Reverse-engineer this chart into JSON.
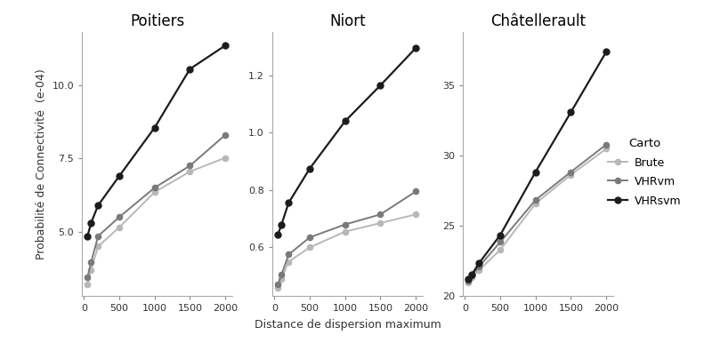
{
  "x": [
    50,
    100,
    200,
    500,
    1000,
    1500,
    2000
  ],
  "panels": [
    {
      "title": "Poitiers",
      "ylabel": "Probabilité de Connectivité  (e-04)",
      "series": {
        "Brute": [
          3.2,
          3.7,
          4.5,
          5.15,
          6.35,
          7.05,
          7.52
        ],
        "VHRvm": [
          3.45,
          3.95,
          4.85,
          5.5,
          6.5,
          7.25,
          8.3
        ],
        "VHRsvm": [
          4.85,
          5.3,
          5.9,
          6.9,
          8.55,
          10.55,
          11.35
        ]
      },
      "ylim": [
        2.8,
        11.8
      ],
      "yticks": [
        5.0,
        7.5,
        10.0
      ],
      "show_ylabel": true
    },
    {
      "title": "Niort",
      "ylabel": "",
      "series": {
        "Brute": [
          0.46,
          0.49,
          0.55,
          0.6,
          0.655,
          0.685,
          0.715
        ],
        "VHRvm": [
          0.47,
          0.505,
          0.575,
          0.635,
          0.68,
          0.715,
          0.795
        ],
        "VHRsvm": [
          0.645,
          0.68,
          0.755,
          0.875,
          1.04,
          1.165,
          1.295
        ]
      },
      "ylim": [
        0.43,
        1.35
      ],
      "yticks": [
        0.6,
        0.8,
        1.0,
        1.2
      ],
      "show_ylabel": false
    },
    {
      "title": "Châtellerault",
      "ylabel": "",
      "series": {
        "Brute": [
          21.0,
          21.35,
          21.85,
          23.3,
          26.6,
          28.65,
          30.5
        ],
        "VHRvm": [
          21.1,
          21.5,
          22.1,
          23.85,
          26.85,
          28.85,
          30.8
        ],
        "VHRsvm": [
          21.2,
          21.55,
          22.35,
          24.35,
          28.85,
          33.1,
          37.4
        ]
      },
      "ylim": [
        20.2,
        38.8
      ],
      "yticks": [
        20,
        25,
        30,
        35
      ],
      "show_ylabel": false
    }
  ],
  "xlabel": "Distance de dispersion maximum",
  "series_order": [
    "Brute",
    "VHRvm",
    "VHRsvm"
  ],
  "series_styles": {
    "Brute": {
      "color": "#b8b8b8",
      "marker": "o",
      "linewidth": 1.4,
      "markersize": 4.5
    },
    "VHRvm": {
      "color": "#7a7a7a",
      "marker": "o",
      "linewidth": 1.4,
      "markersize": 4.5
    },
    "VHRsvm": {
      "color": "#1c1c1c",
      "marker": "o",
      "linewidth": 1.6,
      "markersize": 5
    }
  },
  "legend_title": "Carto",
  "background_color": "#ffffff",
  "panel_bg": "#ffffff",
  "title_fontsize": 12,
  "label_fontsize": 9,
  "tick_fontsize": 8,
  "legend_fontsize": 9
}
